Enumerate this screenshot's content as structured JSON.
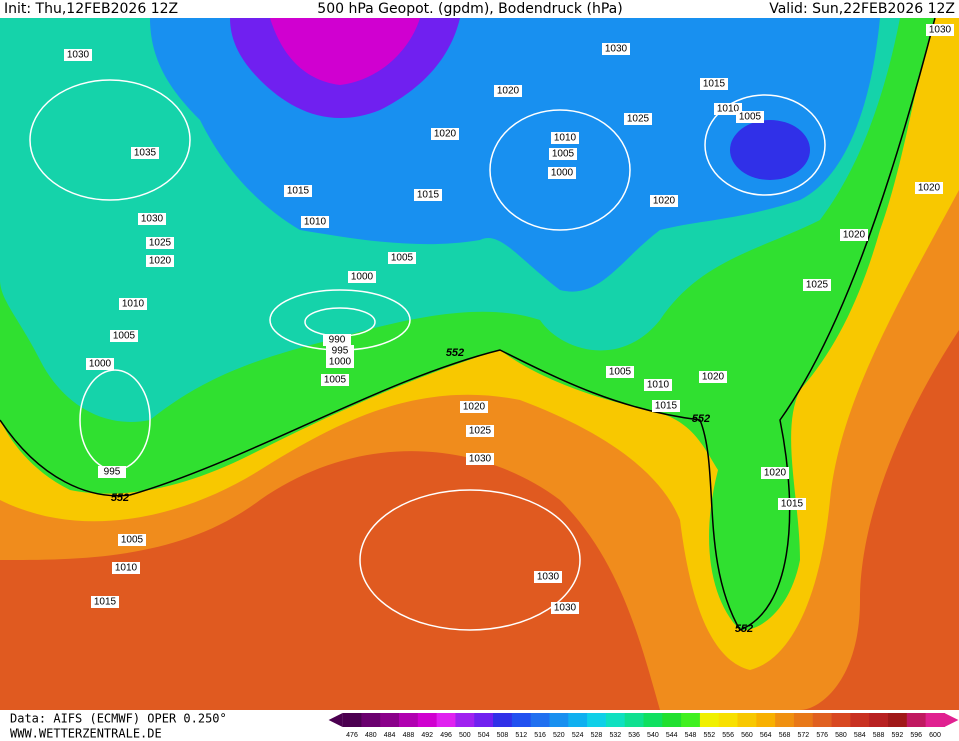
{
  "header": {
    "init": "Init: Thu,12FEB2026 12Z",
    "title": "500 hPa Geopot. (gpdm), Bodendruck (hPa)",
    "valid": "Valid: Sun,22FEB2026 12Z"
  },
  "footer": {
    "data": "Data: AIFS (ECMWF) OPER 0.250°",
    "site": "WWW.WETTERZENTRALE.DE"
  },
  "scale": {
    "values": [
      476,
      480,
      484,
      488,
      492,
      496,
      500,
      504,
      508,
      512,
      516,
      520,
      524,
      528,
      532,
      536,
      540,
      544,
      548,
      552,
      556,
      560,
      564,
      568,
      572,
      576,
      580,
      584,
      588,
      592,
      596,
      600
    ],
    "colors": [
      "#4b0050",
      "#6a006e",
      "#8a008a",
      "#b000b0",
      "#d000d0",
      "#e020f0",
      "#a020f0",
      "#7020f0",
      "#3030e8",
      "#2050f0",
      "#2070f0",
      "#1890f0",
      "#10b0f0",
      "#10d0e8",
      "#10e0c0",
      "#10e090",
      "#10e060",
      "#20e030",
      "#40f020",
      "#f0f000",
      "#f8e000",
      "#f8c800",
      "#f8b000",
      "#f09010",
      "#e87818",
      "#e06020",
      "#d84820",
      "#c83020",
      "#b82020",
      "#a01818",
      "#c01860",
      "#e02090"
    ]
  },
  "isobar_labels": [
    1030,
    1035,
    1030,
    1025,
    1020,
    1010,
    1005,
    1000,
    995,
    1005,
    1010,
    1015,
    1015,
    1010,
    1000,
    990,
    995,
    1000,
    1005,
    1005,
    1015,
    1020,
    1020,
    1030,
    1010,
    1005,
    1000,
    1025,
    1015,
    1010,
    1005,
    1020,
    1020,
    1020,
    1030,
    1025,
    1020,
    1025,
    1030,
    1005,
    1010,
    1015,
    1020,
    1020,
    1015,
    1030,
    1030
  ],
  "geopotential_labels": [
    552,
    552,
    552,
    552
  ]
}
